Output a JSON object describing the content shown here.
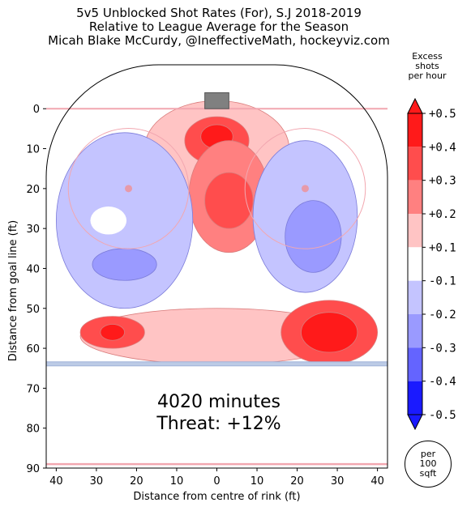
{
  "header": {
    "title_line1": "5v5 Unblocked Shot Rates (For), S.J 2018-2019",
    "title_line2": "Relative to League Average for the Season",
    "title_line3": "Micah Blake McCurdy, @IneffectiveMath, hockeyviz.com"
  },
  "summary": {
    "minutes": "4020 minutes",
    "threat": "Threat: +12%"
  },
  "colorbar": {
    "title_line1": "Excess",
    "title_line2": "shots",
    "title_line3": "per hour",
    "ticks": [
      "+0.5",
      "+0.4",
      "+0.3",
      "+0.2",
      "+0.1",
      "-0.1",
      "-0.2",
      "-0.3",
      "-0.4",
      "-0.5"
    ],
    "colors": [
      "#ff1a1a",
      "#ff4d4d",
      "#ff8080",
      "#ffc4c4",
      "#ffffff",
      "#c4c4ff",
      "#9a9aff",
      "#6464ff",
      "#1a1aff"
    ],
    "top_color": "#ff1a1a",
    "bottom_color": "#1a1aff"
  },
  "per_badge": {
    "line1": "per",
    "line2": "100",
    "line3": "sqft"
  },
  "chart_data": {
    "type": "heatmap",
    "xlabel": "Distance from centre of rink (ft)",
    "ylabel": "Distance from goal line (ft)",
    "xlim": [
      -42.5,
      42.5
    ],
    "ylim": [
      90,
      -11
    ],
    "xticks": [
      -40,
      -30,
      -20,
      -10,
      0,
      10,
      20,
      30,
      40
    ],
    "xtick_labels": [
      "40",
      "30",
      "20",
      "10",
      "0",
      "10",
      "20",
      "30",
      "40"
    ],
    "yticks": [
      0,
      10,
      20,
      30,
      40,
      50,
      60,
      70,
      80,
      90
    ],
    "ytick_labels": [
      "0",
      "10",
      "20",
      "30",
      "40",
      "50",
      "60",
      "70",
      "80",
      "90"
    ],
    "blue_line_ft": 64,
    "goal_line_ft": 0,
    "center_line_ft": 89,
    "faceoff_dots": [
      [
        -22,
        20
      ],
      [
        22,
        20
      ]
    ],
    "faceoff_circle_radius_ft": 15,
    "levels": [
      -0.5,
      -0.4,
      -0.3,
      -0.2,
      -0.1,
      0.1,
      0.2,
      0.3,
      0.4,
      0.5
    ],
    "regions": [
      {
        "cx": 0,
        "cy": 10,
        "rx": 18,
        "ry": 12,
        "value": 0.15
      },
      {
        "cx": 0,
        "cy": 8,
        "rx": 8,
        "ry": 6,
        "value": 0.3
      },
      {
        "cx": 0,
        "cy": 7,
        "rx": 4,
        "ry": 3,
        "value": 0.45
      },
      {
        "cx": 3,
        "cy": 22,
        "rx": 10,
        "ry": 14,
        "value": 0.2
      },
      {
        "cx": 3,
        "cy": 23,
        "rx": 6,
        "ry": 7,
        "value": 0.35
      },
      {
        "cx": -23,
        "cy": 28,
        "rx": 17,
        "ry": 22,
        "value": -0.15
      },
      {
        "cx": -23,
        "cy": 39,
        "rx": 8,
        "ry": 4,
        "value": -0.25
      },
      {
        "cx": 22,
        "cy": 27,
        "rx": 13,
        "ry": 19,
        "value": -0.15
      },
      {
        "cx": 24,
        "cy": 32,
        "rx": 7,
        "ry": 9,
        "value": -0.25
      },
      {
        "cx": 0,
        "cy": 57,
        "rx": 34,
        "ry": 7,
        "value": 0.12
      },
      {
        "cx": 28,
        "cy": 56,
        "rx": 12,
        "ry": 8,
        "value": 0.3
      },
      {
        "cx": 28,
        "cy": 56,
        "rx": 7,
        "ry": 5,
        "value": 0.45
      },
      {
        "cx": -26,
        "cy": 56,
        "rx": 8,
        "ry": 4,
        "value": 0.3
      },
      {
        "cx": -26,
        "cy": 56,
        "rx": 3,
        "ry": 2,
        "value": 0.45
      }
    ]
  }
}
